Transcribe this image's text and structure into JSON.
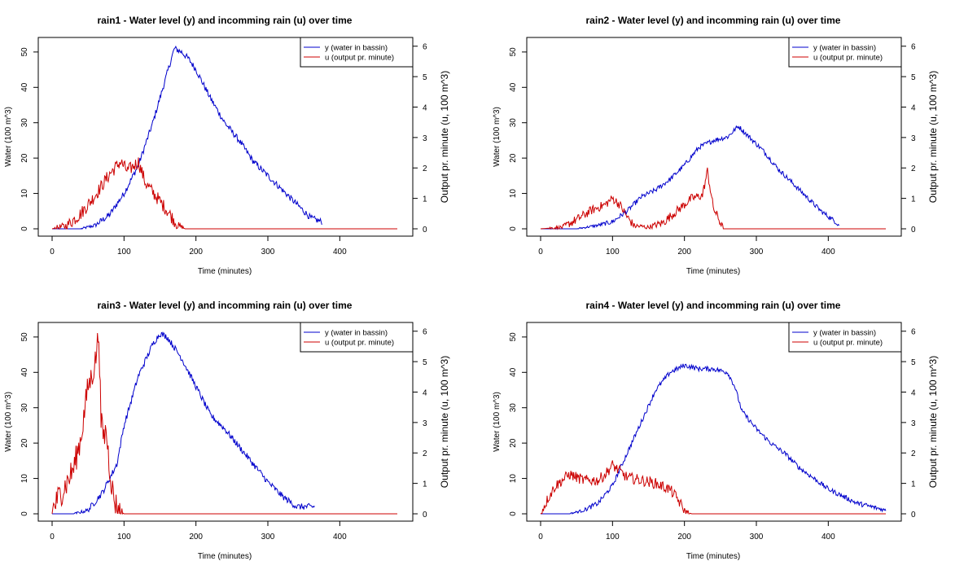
{
  "chart_data": [
    {
      "type": "line",
      "title": "rain1 - Water level (y) and incomming rain (u) over time",
      "xlabel": "Time (minutes)",
      "ylabel": "Water (100 m^3)",
      "y2label": "Output pr. minute (u, 100 m^3)",
      "xlim": [
        0,
        480
      ],
      "ylim": [
        0,
        52.5
      ],
      "y2lim": [
        0,
        6.1
      ],
      "xticks": [
        "0",
        "100",
        "200",
        "300",
        "400"
      ],
      "yticks": [
        "0",
        "10",
        "20",
        "30",
        "40",
        "50"
      ],
      "y2ticks": [
        "0",
        "1",
        "2",
        "3",
        "4",
        "5",
        "6"
      ],
      "legend": {
        "placement": "top-right",
        "entries": [
          "y (water in bassin)",
          "u (output pr. minute)"
        ]
      },
      "series": [
        {
          "name": "y (water in bassin)",
          "axis": "left",
          "color": "#0000cc",
          "end": 375,
          "noise": 0.9,
          "x": [
            0,
            40,
            60,
            80,
            100,
            120,
            140,
            160,
            170,
            180,
            190,
            200,
            220,
            240,
            260,
            280,
            300,
            320,
            340,
            360,
            375
          ],
          "y": [
            0,
            0,
            1,
            4,
            10,
            18,
            30,
            44,
            51,
            50,
            48,
            45,
            37,
            30,
            25,
            19,
            15,
            11,
            7,
            3,
            2
          ]
        },
        {
          "name": "u (output pr. minute)",
          "axis": "right",
          "color": "#cc0000",
          "end": 480,
          "noise": 0.22,
          "x": [
            0,
            20,
            40,
            60,
            80,
            95,
            105,
            120,
            130,
            140,
            160,
            175,
            185,
            480
          ],
          "y": [
            0,
            0.1,
            0.5,
            1.1,
            1.8,
            2.2,
            1.9,
            2.2,
            1.5,
            1.2,
            0.6,
            0.1,
            0,
            0
          ]
        }
      ]
    },
    {
      "type": "line",
      "title": "rain2 - Water level (y) and incomming rain (u) over time",
      "xlabel": "Time (minutes)",
      "ylabel": "Water (100 m^3)",
      "y2label": "Output pr. minute (u, 100 m^3)",
      "xlim": [
        0,
        480
      ],
      "ylim": [
        0,
        52.5
      ],
      "y2lim": [
        0,
        6.1
      ],
      "xticks": [
        "0",
        "100",
        "200",
        "300",
        "400"
      ],
      "yticks": [
        "0",
        "10",
        "20",
        "30",
        "40",
        "50"
      ],
      "y2ticks": [
        "0",
        "1",
        "2",
        "3",
        "4",
        "5",
        "6"
      ],
      "legend": {
        "placement": "top-right",
        "entries": [
          "y (water in bassin)",
          "u (output pr. minute)"
        ]
      },
      "series": [
        {
          "name": "y (water in bassin)",
          "axis": "left",
          "color": "#0000cc",
          "end": 415,
          "noise": 0.7,
          "x": [
            0,
            50,
            80,
            100,
            120,
            140,
            160,
            180,
            200,
            220,
            240,
            260,
            275,
            290,
            310,
            330,
            350,
            370,
            390,
            410,
            415
          ],
          "y": [
            0,
            0,
            1,
            2,
            5,
            9,
            11,
            14,
            18,
            23,
            25,
            26,
            29,
            26,
            22,
            17,
            13,
            9,
            5,
            2,
            1
          ]
        },
        {
          "name": "u (output pr. minute)",
          "axis": "right",
          "color": "#cc0000",
          "end": 480,
          "noise": 0.15,
          "x": [
            0,
            30,
            50,
            70,
            90,
            100,
            110,
            120,
            130,
            150,
            170,
            190,
            210,
            225,
            232,
            240,
            250,
            255,
            480
          ],
          "y": [
            0,
            0.05,
            0.3,
            0.6,
            0.8,
            1.0,
            0.8,
            0.4,
            0.1,
            0.05,
            0.2,
            0.6,
            1.0,
            1.1,
            1.9,
            0.7,
            0.2,
            0,
            0
          ]
        }
      ]
    },
    {
      "type": "line",
      "title": "rain3 - Water level (y) and incomming rain (u) over time",
      "xlabel": "Time (minutes)",
      "ylabel": "Water (100 m^3)",
      "y2label": "Output pr. minute (u, 100 m^3)",
      "xlim": [
        0,
        480
      ],
      "ylim": [
        0,
        52.5
      ],
      "y2lim": [
        0,
        6.1
      ],
      "xticks": [
        "0",
        "100",
        "200",
        "300",
        "400"
      ],
      "yticks": [
        "0",
        "10",
        "20",
        "30",
        "40",
        "50"
      ],
      "y2ticks": [
        "0",
        "1",
        "2",
        "3",
        "4",
        "5",
        "6"
      ],
      "legend": {
        "placement": "top-right",
        "entries": [
          "y (water in bassin)",
          "u (output pr. minute)"
        ]
      },
      "series": [
        {
          "name": "y (water in bassin)",
          "axis": "left",
          "color": "#0000cc",
          "end": 365,
          "noise": 0.9,
          "x": [
            0,
            30,
            50,
            70,
            90,
            100,
            120,
            140,
            150,
            160,
            180,
            200,
            220,
            240,
            260,
            280,
            300,
            320,
            340,
            365
          ],
          "y": [
            0,
            0,
            1,
            6,
            14,
            25,
            39,
            48,
            51,
            50,
            44,
            36,
            28,
            24,
            19,
            14,
            9,
            5,
            2,
            2
          ]
        },
        {
          "name": "u (output pr. minute)",
          "axis": "right",
          "color": "#cc0000",
          "end": 480,
          "noise": 0.45,
          "x": [
            0,
            10,
            20,
            30,
            40,
            50,
            55,
            60,
            65,
            68,
            72,
            75,
            80,
            85,
            90,
            100,
            480
          ],
          "y": [
            0.1,
            0.6,
            1.0,
            1.5,
            2.5,
            4.2,
            4.5,
            5.0,
            6.0,
            3.0,
            2.5,
            2.8,
            1.5,
            0.6,
            0.2,
            0,
            0
          ]
        }
      ]
    },
    {
      "type": "line",
      "title": "rain4 - Water level (y) and incomming rain (u) over time",
      "xlabel": "Time (minutes)",
      "ylabel": "Water (100 m^3)",
      "y2label": "Output pr. minute (u, 100 m^3)",
      "xlim": [
        0,
        480
      ],
      "ylim": [
        0,
        52.5
      ],
      "y2lim": [
        0,
        6.1
      ],
      "xticks": [
        "0",
        "100",
        "200",
        "300",
        "400"
      ],
      "yticks": [
        "0",
        "10",
        "20",
        "30",
        "40",
        "50"
      ],
      "y2ticks": [
        "0",
        "1",
        "2",
        "3",
        "4",
        "5",
        "6"
      ],
      "legend": {
        "placement": "top-right",
        "entries": [
          "y (water in bassin)",
          "u (output pr. minute)"
        ]
      },
      "series": [
        {
          "name": "y (water in bassin)",
          "axis": "left",
          "color": "#0000cc",
          "end": 480,
          "noise": 0.7,
          "x": [
            0,
            40,
            60,
            80,
            100,
            120,
            140,
            160,
            180,
            200,
            220,
            240,
            260,
            270,
            280,
            300,
            320,
            340,
            360,
            380,
            400,
            420,
            440,
            460,
            480
          ],
          "y": [
            0,
            0,
            1,
            3,
            8,
            17,
            26,
            35,
            40,
            42,
            41,
            41,
            40,
            36,
            29,
            24,
            20,
            17,
            13,
            10,
            7,
            5,
            3,
            2,
            1
          ]
        },
        {
          "name": "u (output pr. minute)",
          "axis": "right",
          "color": "#cc0000",
          "end": 480,
          "noise": 0.18,
          "x": [
            0,
            10,
            20,
            30,
            40,
            60,
            80,
            90,
            100,
            110,
            120,
            140,
            160,
            180,
            190,
            200,
            210,
            480
          ],
          "y": [
            0,
            0.5,
            0.9,
            1.1,
            1.3,
            1.1,
            1.1,
            1.3,
            1.6,
            1.4,
            1.2,
            1.1,
            1.0,
            0.8,
            0.5,
            0.1,
            0,
            0
          ]
        }
      ]
    }
  ]
}
